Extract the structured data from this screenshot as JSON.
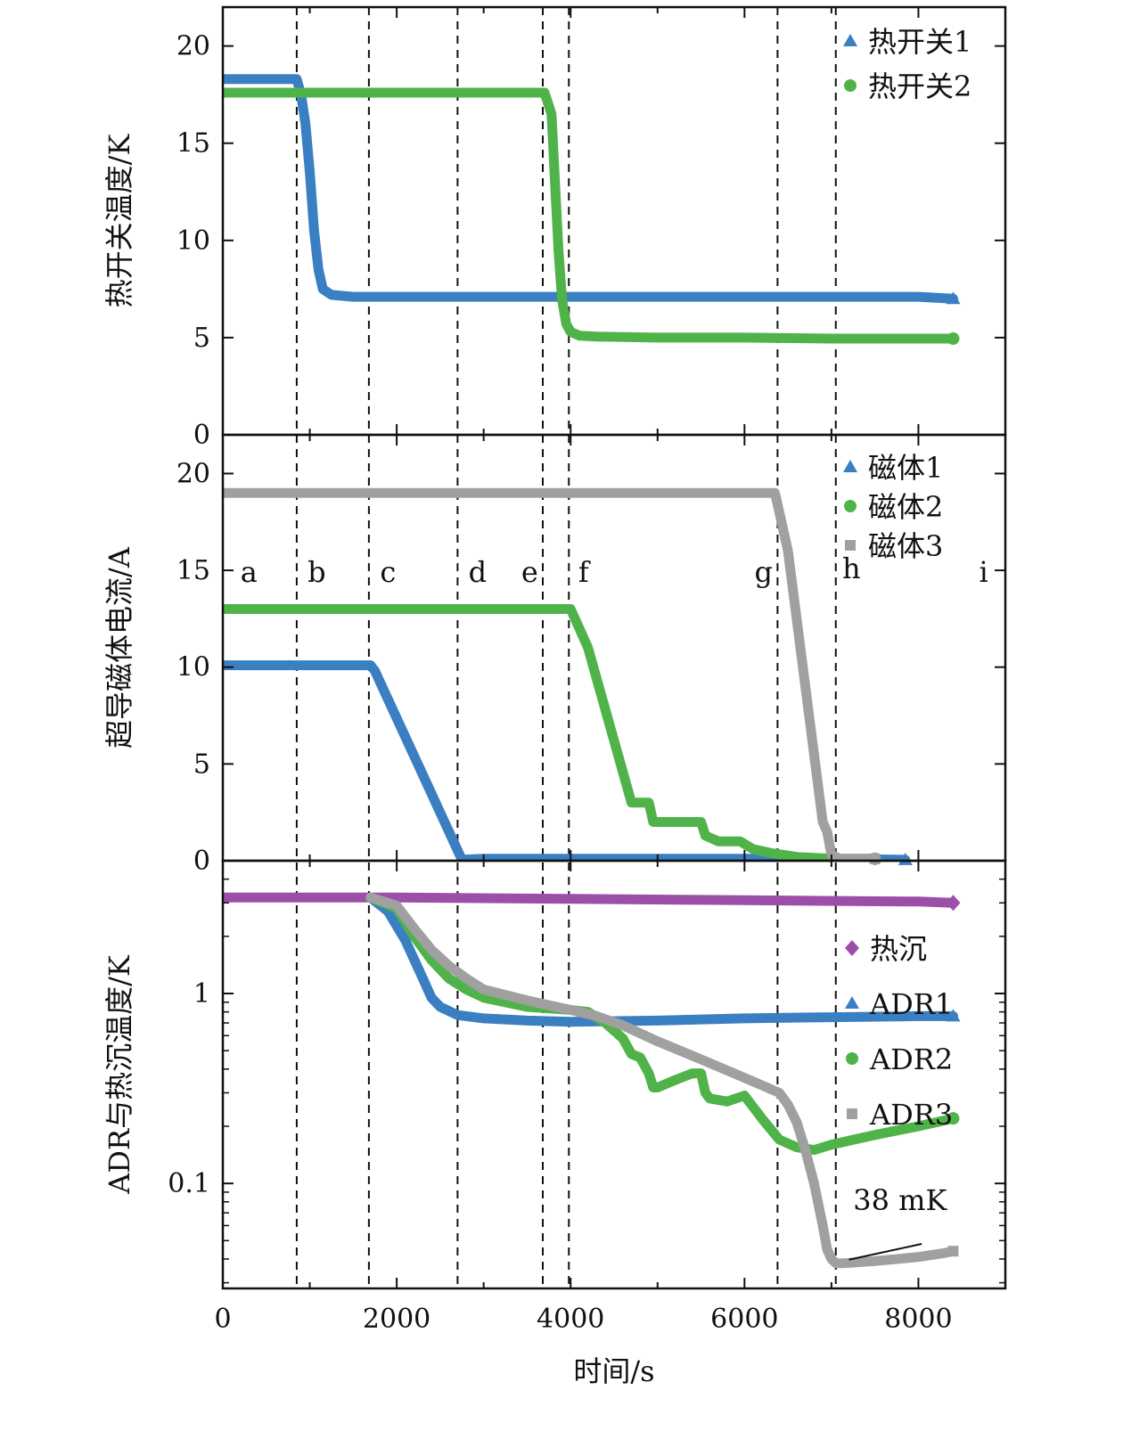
{
  "colors": {
    "blue": "#3a7fc1",
    "green": "#4fb349",
    "gray": "#a0a0a0",
    "purple": "#9b4fa8",
    "axis": "#111111"
  },
  "chart_data": [
    {
      "panel": "top",
      "type": "line",
      "ylabel": "热开关温度/K",
      "ylim": [
        0,
        22
      ],
      "yticks": [
        0,
        5,
        10,
        15,
        20
      ],
      "legend": "top-right",
      "series": [
        {
          "name": "热开关1",
          "color": "#3a7fc1",
          "marker": "triangle",
          "x": [
            0,
            850,
            900,
            950,
            1000,
            1050,
            1100,
            1150,
            1250,
            1500,
            2000,
            3000,
            4000,
            5000,
            6000,
            7000,
            8000,
            8400
          ],
          "y": [
            18.3,
            18.3,
            17.5,
            16,
            13.5,
            10.5,
            8.5,
            7.5,
            7.2,
            7.1,
            7.1,
            7.1,
            7.1,
            7.1,
            7.1,
            7.1,
            7.1,
            7.0
          ]
        },
        {
          "name": "热开关2",
          "color": "#4fb349",
          "marker": "circle",
          "x": [
            0,
            1000,
            2000,
            3000,
            3700,
            3780,
            3820,
            3860,
            3900,
            3950,
            4000,
            4100,
            4300,
            5000,
            6000,
            7000,
            8000,
            8400
          ],
          "y": [
            17.6,
            17.6,
            17.6,
            17.6,
            17.6,
            16.5,
            13,
            9.5,
            7,
            5.7,
            5.3,
            5.1,
            5.05,
            5.0,
            5.0,
            4.95,
            4.95,
            4.95
          ]
        }
      ]
    },
    {
      "panel": "middle",
      "type": "line",
      "ylabel": "超导磁体电流/A",
      "ylim": [
        0,
        22
      ],
      "yticks": [
        0,
        5,
        10,
        15,
        20
      ],
      "legend": "top-right",
      "phase_labels": [
        {
          "text": "a",
          "x": 300,
          "y": 14.4
        },
        {
          "text": "b",
          "x": 1080,
          "y": 14.4
        },
        {
          "text": "c",
          "x": 1900,
          "y": 14.4
        },
        {
          "text": "d",
          "x": 2930,
          "y": 14.4
        },
        {
          "text": "e",
          "x": 3530,
          "y": 14.4
        },
        {
          "text": "f",
          "x": 4150,
          "y": 14.4
        },
        {
          "text": "g",
          "x": 6220,
          "y": 14.4
        },
        {
          "text": "h",
          "x": 7230,
          "y": 14.6
        },
        {
          "text": "i",
          "x": 8750,
          "y": 14.4
        }
      ],
      "series": [
        {
          "name": "磁体1",
          "color": "#3a7fc1",
          "marker": "triangle",
          "x": [
            0,
            1700,
            1750,
            2750,
            3000,
            5000,
            7000,
            7850
          ],
          "y": [
            10.1,
            10.1,
            9.8,
            0.05,
            0.1,
            0.1,
            0.1,
            0.05
          ]
        },
        {
          "name": "磁体2",
          "color": "#4fb349",
          "marker": "circle",
          "x": [
            0,
            2750,
            3000,
            4000,
            4100,
            4200,
            4700,
            4800,
            4900,
            4950,
            5500,
            5550,
            5600,
            5700,
            5950,
            6100,
            6300,
            6600,
            7000,
            7500
          ],
          "y": [
            13.0,
            13.0,
            13.0,
            13.0,
            12,
            11,
            3.0,
            3.0,
            3.0,
            2.0,
            2.0,
            1.3,
            1.2,
            1.0,
            1.0,
            0.6,
            0.4,
            0.2,
            0.1,
            0.1
          ]
        },
        {
          "name": "磁体3",
          "color": "#a0a0a0",
          "marker": "square",
          "x": [
            0,
            1000,
            2000,
            3000,
            4000,
            5000,
            6000,
            6350,
            6400,
            6500,
            6900,
            6950,
            7000,
            7100,
            7500
          ],
          "y": [
            19.0,
            19.0,
            19.0,
            19.0,
            19.0,
            19.0,
            19.0,
            19.0,
            18.0,
            16.0,
            2.0,
            1.5,
            0.3,
            0.1,
            0.1
          ]
        }
      ]
    },
    {
      "panel": "bottom",
      "type": "line",
      "xlabel": "时间/s",
      "ylabel": "ADR与热沉温度/K",
      "xlim": [
        0,
        9000
      ],
      "xticks": [
        0,
        2000,
        4000,
        6000,
        8000
      ],
      "yscale": "log",
      "ylim": [
        0.028,
        5.0
      ],
      "yticks": [
        0.1,
        1
      ],
      "ytick_labels": [
        "0.1",
        "1"
      ],
      "legend": "right",
      "annotation": {
        "text": "38 mK",
        "point": [
          7150,
          0.038
        ],
        "text_pos": [
          7300,
          0.065
        ]
      },
      "phase_lines_x": [
        850,
        1680,
        2700,
        3680,
        3980,
        6380,
        7050
      ],
      "series": [
        {
          "name": "热沉",
          "color": "#9b4fa8",
          "marker": "diamond",
          "x": [
            0,
            2000,
            4000,
            6000,
            8000,
            8400
          ],
          "y": [
            3.2,
            3.2,
            3.15,
            3.1,
            3.05,
            3.0
          ]
        },
        {
          "name": "ADR1",
          "color": "#3a7fc1",
          "marker": "triangle",
          "x": [
            1700,
            1900,
            2100,
            2300,
            2400,
            2500,
            2700,
            3000,
            3500,
            4000,
            5000,
            6000,
            7000,
            8000,
            8400
          ],
          "y": [
            3.2,
            2.7,
            1.9,
            1.2,
            0.95,
            0.85,
            0.77,
            0.74,
            0.72,
            0.71,
            0.72,
            0.74,
            0.75,
            0.76,
            0.76
          ]
        },
        {
          "name": "ADR2",
          "color": "#4fb349",
          "marker": "circle",
          "x": [
            1700,
            2000,
            2200,
            2400,
            2600,
            2800,
            3000,
            3500,
            4000,
            4200,
            4400,
            4600,
            4700,
            4800,
            4900,
            4950,
            5000,
            5200,
            5400,
            5500,
            5550,
            5600,
            5800,
            6000,
            6200,
            6400,
            6600,
            6800,
            7000,
            7500,
            8000,
            8400
          ],
          "y": [
            3.2,
            2.8,
            2.0,
            1.5,
            1.2,
            1.05,
            0.95,
            0.85,
            0.82,
            0.8,
            0.7,
            0.58,
            0.48,
            0.46,
            0.38,
            0.32,
            0.32,
            0.35,
            0.38,
            0.38,
            0.3,
            0.28,
            0.27,
            0.29,
            0.22,
            0.17,
            0.155,
            0.15,
            0.16,
            0.18,
            0.2,
            0.22
          ]
        },
        {
          "name": "ADR3",
          "color": "#a0a0a0",
          "marker": "square",
          "x": [
            1700,
            2000,
            2200,
            2400,
            2600,
            2800,
            3000,
            3500,
            4000,
            4300,
            4600,
            5000,
            5500,
            6000,
            6400,
            6500,
            6600,
            6700,
            6800,
            6900,
            6950,
            7000,
            7050,
            7150,
            7500,
            8000,
            8300,
            8400
          ],
          "y": [
            3.2,
            2.9,
            2.2,
            1.7,
            1.4,
            1.2,
            1.05,
            0.92,
            0.82,
            0.76,
            0.68,
            0.56,
            0.45,
            0.36,
            0.3,
            0.26,
            0.21,
            0.15,
            0.1,
            0.06,
            0.045,
            0.04,
            0.038,
            0.038,
            0.039,
            0.041,
            0.043,
            0.044
          ]
        }
      ]
    }
  ]
}
